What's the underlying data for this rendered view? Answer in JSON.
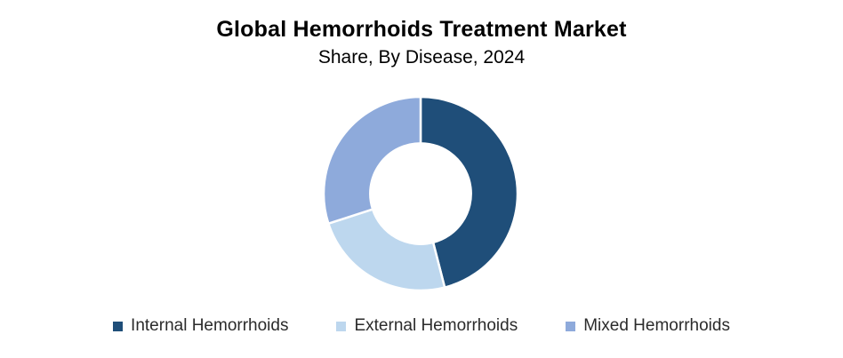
{
  "header": {
    "title": "Global Hemorrhoids Treatment Market",
    "subtitle": "Share, By Disease, 2024"
  },
  "chart_data": {
    "type": "pie",
    "subtype": "donut",
    "title": "Global Hemorrhoids Treatment Market",
    "subtitle": "Share, By Disease, 2024",
    "unit": "% market share (estimated from arc angles, no data labels shown)",
    "categories": [
      "Internal Hemorrhoids",
      "External Hemorrhoids",
      "Mixed Hemorrhoids"
    ],
    "values": [
      46,
      24,
      30
    ],
    "colors": [
      "#1F4E79",
      "#BDD7EE",
      "#8EAADB"
    ],
    "start_angle_deg": 0,
    "direction": "clockwise",
    "inner_radius_ratio": 0.52,
    "slice_border_color": "#FFFFFF",
    "legend_position": "bottom",
    "data_labels": false,
    "background": "#FFFFFF"
  },
  "legend": {
    "items": [
      {
        "label": "Internal Hemorrhoids",
        "color": "#1F4E79"
      },
      {
        "label": "External Hemorrhoids",
        "color": "#BDD7EE"
      },
      {
        "label": "Mixed Hemorrhoids",
        "color": "#8EAADB"
      }
    ]
  }
}
